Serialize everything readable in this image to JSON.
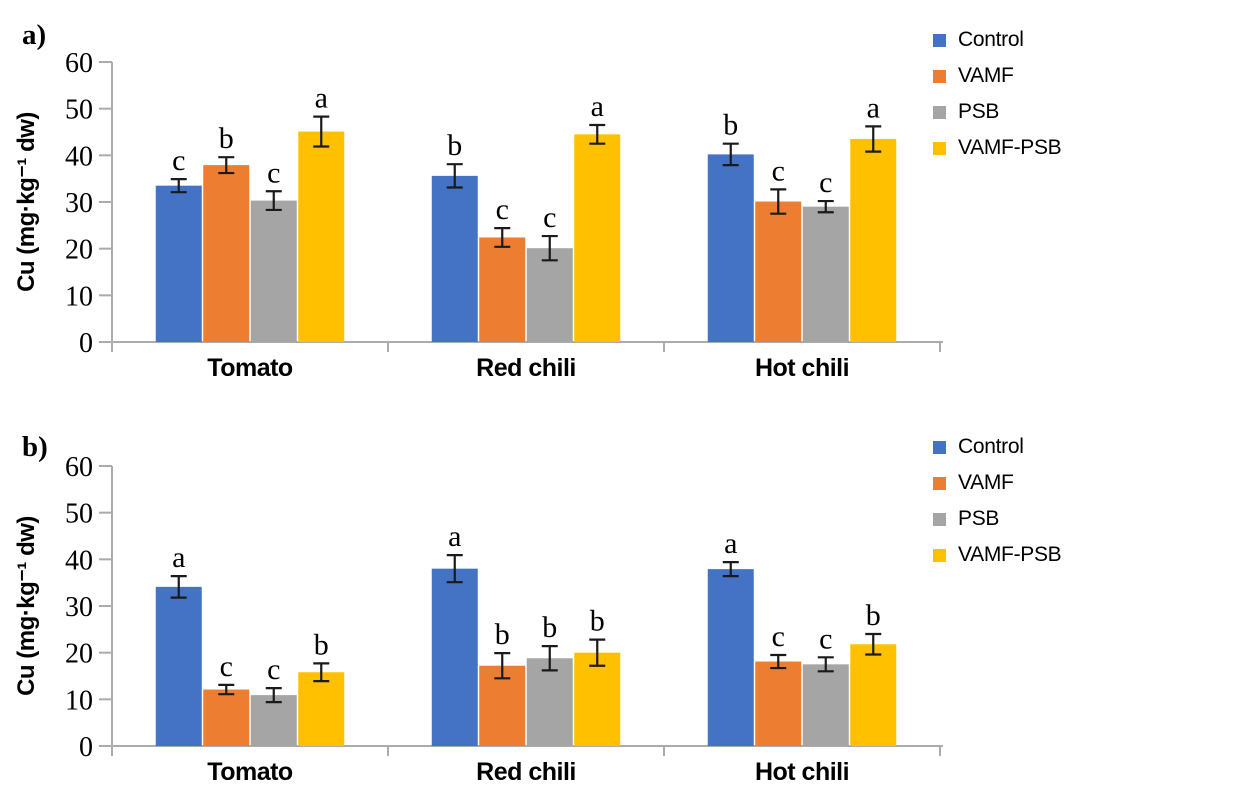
{
  "figure_title": "",
  "colors": {
    "control": "#4472C4",
    "vamf": "#ED7D31",
    "psb": "#A5A5A5",
    "vamf_psb": "#FFC000",
    "axis_line": "#ABABAB",
    "error_bar": "#1a1a1a",
    "text": "#000000"
  },
  "legend": {
    "position": "top-right",
    "items": [
      {
        "label": "Control",
        "color": "#4472C4"
      },
      {
        "label": "VAMF",
        "color": "#ED7D31"
      },
      {
        "label": "PSB",
        "color": "#A5A5A5"
      },
      {
        "label": "VAMF-PSB",
        "color": "#FFC000"
      }
    ]
  },
  "chart_data": [
    {
      "type": "bar",
      "panel_label": "a)",
      "title": "",
      "xlabel": "",
      "ylabel": "Cu (mg·kg⁻¹ dw)",
      "ylim": [
        0,
        60
      ],
      "yticks": [
        0,
        10,
        20,
        30,
        40,
        50,
        60
      ],
      "grid": false,
      "legend_position": "top-right",
      "categories": [
        "Tomato",
        "Red chili",
        "Hot chili"
      ],
      "series": [
        {
          "name": "Control",
          "color": "#4472C4",
          "values": [
            33.5,
            35.6,
            40.2
          ],
          "errors": [
            1.4,
            2.5,
            2.3
          ],
          "letters": [
            "c",
            "b",
            "b"
          ]
        },
        {
          "name": "VAMF",
          "color": "#ED7D31",
          "values": [
            37.9,
            22.4,
            30.1
          ],
          "errors": [
            1.7,
            2.0,
            2.6
          ],
          "letters": [
            "b",
            "c",
            "c"
          ]
        },
        {
          "name": "PSB",
          "color": "#A5A5A5",
          "values": [
            30.3,
            20.1,
            29.0
          ],
          "errors": [
            2.0,
            2.6,
            1.2
          ],
          "letters": [
            "c",
            "c",
            "c"
          ]
        },
        {
          "name": "VAMF-PSB",
          "color": "#FFC000",
          "values": [
            45.1,
            44.5,
            43.5
          ],
          "errors": [
            3.2,
            2.0,
            2.7
          ],
          "letters": [
            "a",
            "a",
            "a"
          ]
        }
      ]
    },
    {
      "type": "bar",
      "panel_label": "b)",
      "title": "",
      "xlabel": "",
      "ylabel": "Cu (mg·kg⁻¹ dw)",
      "ylim": [
        0,
        60
      ],
      "yticks": [
        0,
        10,
        20,
        30,
        40,
        50,
        60
      ],
      "grid": false,
      "legend_position": "top-right",
      "categories": [
        "Tomato",
        "Red chili",
        "Hot chili"
      ],
      "series": [
        {
          "name": "Control",
          "color": "#4472C4",
          "values": [
            34.1,
            38.0,
            37.9
          ],
          "errors": [
            2.3,
            2.9,
            1.5
          ],
          "letters": [
            "a",
            "a",
            "a"
          ]
        },
        {
          "name": "VAMF",
          "color": "#ED7D31",
          "values": [
            12.1,
            17.2,
            18.1
          ],
          "errors": [
            1.0,
            2.7,
            1.4
          ],
          "letters": [
            "c",
            "b",
            "c"
          ]
        },
        {
          "name": "PSB",
          "color": "#A5A5A5",
          "values": [
            10.9,
            18.8,
            17.5
          ],
          "errors": [
            1.5,
            2.6,
            1.5
          ],
          "letters": [
            "c",
            "b",
            "c"
          ]
        },
        {
          "name": "VAMF-PSB",
          "color": "#FFC000",
          "values": [
            15.8,
            20.0,
            21.8
          ],
          "errors": [
            1.9,
            2.8,
            2.2
          ],
          "letters": [
            "b",
            "b",
            "b"
          ]
        }
      ]
    }
  ]
}
